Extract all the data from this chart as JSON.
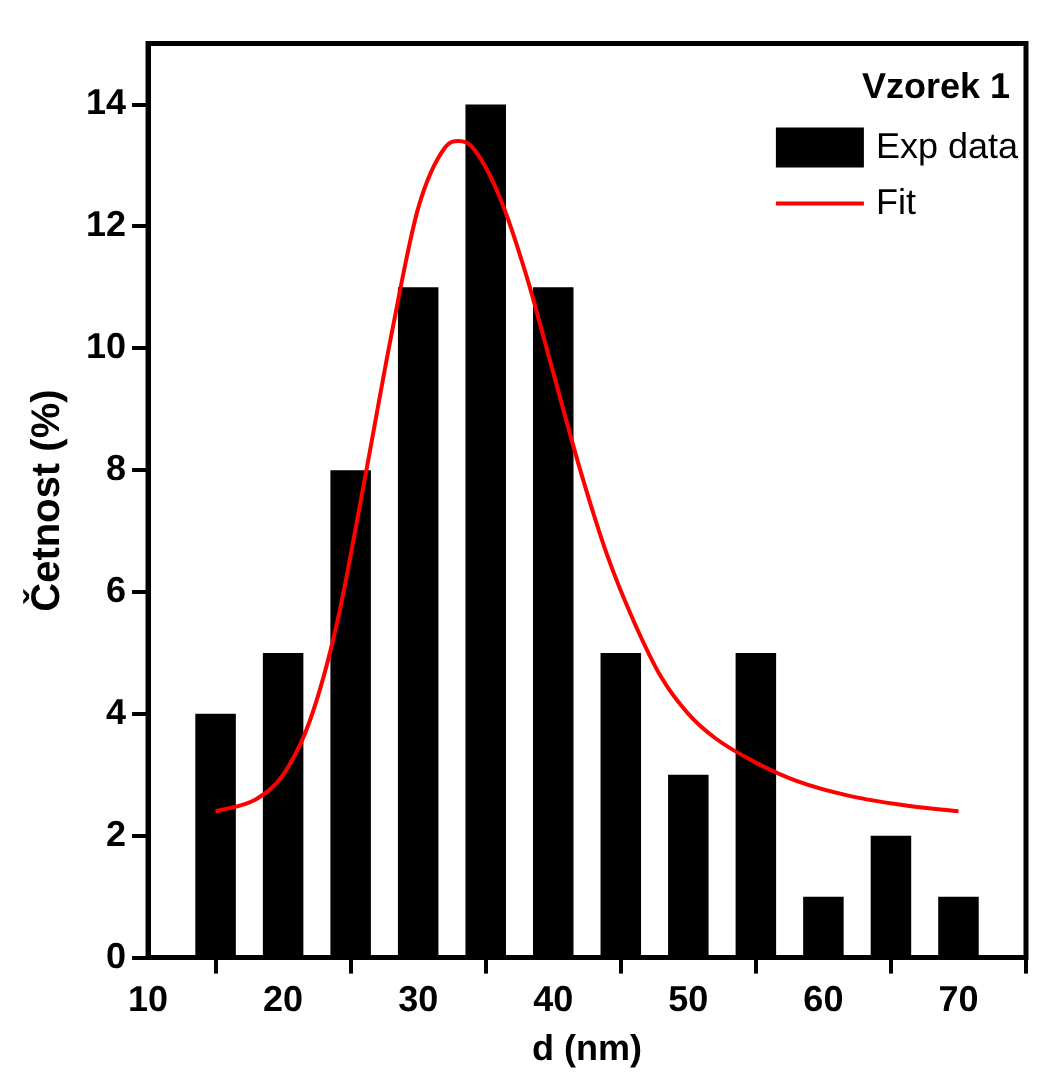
{
  "chart_data": {
    "type": "bar",
    "xlabel": "d (nm)",
    "ylabel": "Četnost (%)",
    "legend_title": "Vzorek 1",
    "legend": "top right",
    "grid": false,
    "xlim": [
      10,
      75
    ],
    "xticks": [
      10,
      20,
      30,
      40,
      50,
      60,
      70
    ],
    "ylim": [
      0,
      15
    ],
    "yticks": [
      0,
      2,
      4,
      6,
      8,
      10,
      12,
      14
    ],
    "series": [
      {
        "name": "Exp data",
        "color": "#000000",
        "x": [
          15,
          20,
          25,
          30,
          35,
          40,
          45,
          50,
          55,
          60,
          65,
          70
        ],
        "values": [
          4,
          5,
          8,
          11,
          14,
          11,
          5,
          3,
          5,
          1,
          2,
          1
        ]
      },
      {
        "name": "Fit",
        "type": "line",
        "color": "#ff0000",
        "marker": "none",
        "line_style": "solid",
        "x": [
          15,
          18,
          20,
          22,
          24,
          26,
          28,
          30,
          32,
          33,
          34,
          36,
          38,
          40,
          42,
          44,
          46,
          48,
          50,
          52,
          55,
          58,
          62,
          66,
          70
        ],
        "values": [
          2.4,
          2.6,
          3.0,
          3.9,
          5.5,
          7.8,
          10.2,
          12.3,
          13.3,
          13.4,
          13.3,
          12.5,
          11.2,
          9.6,
          8.0,
          6.6,
          5.5,
          4.6,
          4.0,
          3.6,
          3.2,
          2.9,
          2.65,
          2.5,
          2.4
        ]
      }
    ]
  }
}
